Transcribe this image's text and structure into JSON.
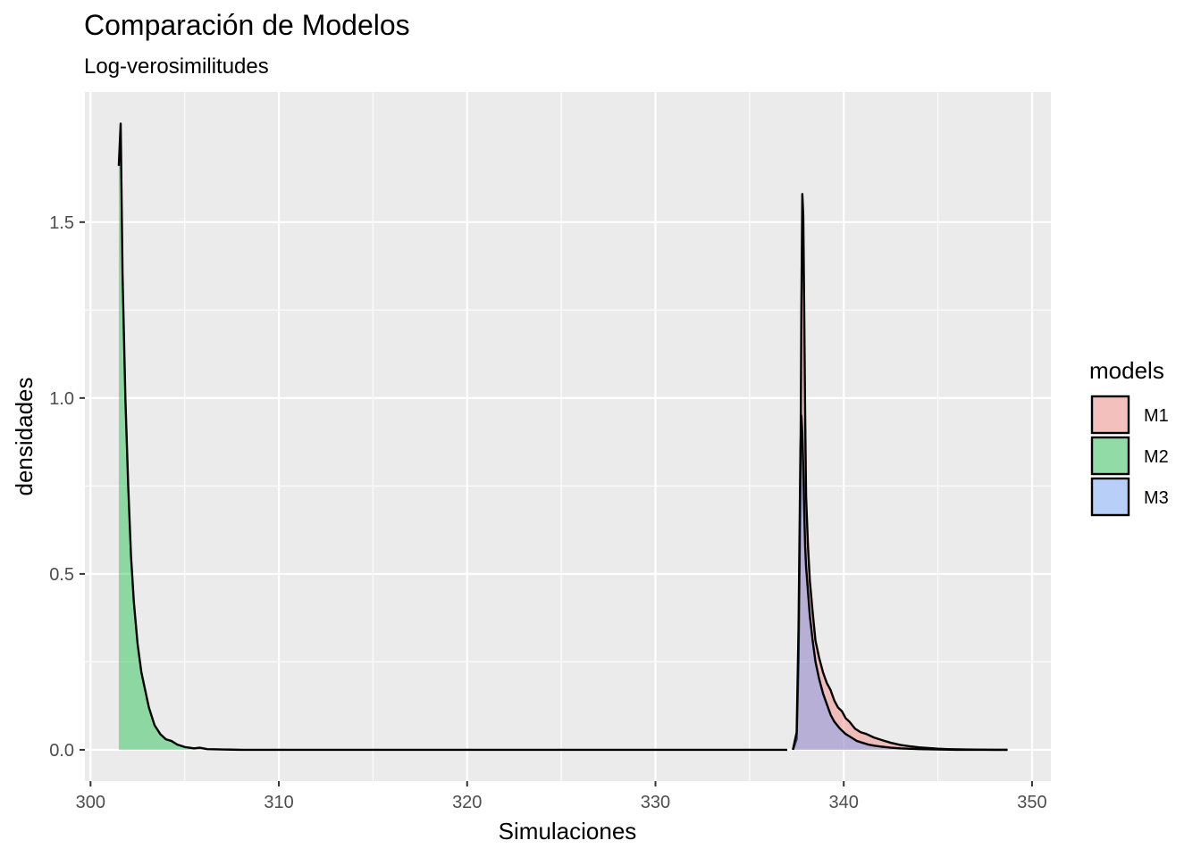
{
  "chart_data": {
    "type": "area",
    "title": "Comparación de Modelos",
    "subtitle": "Log-verosimilitudes",
    "xlabel": "Simulaciones",
    "ylabel": "densidades",
    "xlim": [
      299.7,
      351
    ],
    "ylim": [
      -0.089,
      1.87
    ],
    "x_ticks": [
      300,
      310,
      320,
      330,
      340,
      350
    ],
    "x_tick_labels": [
      "300",
      "310",
      "320",
      "330",
      "340",
      "350"
    ],
    "y_ticks": [
      0,
      0.5,
      1,
      1.5
    ],
    "y_tick_labels": [
      "0.0",
      "0.5",
      "1.0",
      "1.5"
    ],
    "grid": true,
    "legend": {
      "title": "models",
      "placement": "right",
      "entries": [
        "M1",
        "M2",
        "M3"
      ]
    },
    "series": [
      {
        "name": "M1",
        "color": "#F8766D",
        "x": [
          337.3,
          337.5,
          337.6,
          337.7,
          337.75,
          337.8,
          337.85,
          337.9,
          337.95,
          338.0,
          338.1,
          338.2,
          338.35,
          338.5,
          338.7,
          338.9,
          339.1,
          339.3,
          339.5,
          339.7,
          339.9,
          340.1,
          340.3,
          340.6,
          340.9,
          341.2,
          341.6,
          342.0,
          342.5,
          343.0,
          343.5,
          344.0,
          344.5,
          345.0,
          345.5,
          346.5,
          348.0,
          348.7
        ],
        "y": [
          0.0,
          0.03,
          0.25,
          0.75,
          1.25,
          1.58,
          1.52,
          1.25,
          0.95,
          0.72,
          0.58,
          0.48,
          0.39,
          0.31,
          0.26,
          0.22,
          0.19,
          0.17,
          0.14,
          0.12,
          0.11,
          0.09,
          0.08,
          0.06,
          0.05,
          0.045,
          0.035,
          0.028,
          0.02,
          0.014,
          0.01,
          0.007,
          0.005,
          0.003,
          0.002,
          0.001,
          0.0,
          0.0
        ]
      },
      {
        "name": "M2",
        "color": "#00BA38",
        "x": [
          301.5,
          301.6,
          301.7,
          301.85,
          302.0,
          302.15,
          302.3,
          302.5,
          302.7,
          302.9,
          303.1,
          303.4,
          303.7,
          304.0,
          304.3,
          304.6,
          305.0,
          305.5,
          305.8,
          306.2,
          307.0,
          308.0,
          310.0,
          320.0,
          330.0,
          337.0
        ],
        "y": [
          1.66,
          1.78,
          1.35,
          1.0,
          0.75,
          0.55,
          0.42,
          0.3,
          0.22,
          0.17,
          0.12,
          0.07,
          0.045,
          0.03,
          0.025,
          0.015,
          0.008,
          0.004,
          0.006,
          0.002,
          0.001,
          0.0,
          0.0,
          0.0,
          0.0,
          0.0
        ]
      },
      {
        "name": "M3",
        "color": "#619CFF",
        "x": [
          337.3,
          337.5,
          337.6,
          337.7,
          337.75,
          337.8,
          337.85,
          337.9,
          337.95,
          338.0,
          338.1,
          338.2,
          338.35,
          338.5,
          338.7,
          338.9,
          339.1,
          339.3,
          339.5,
          339.8,
          340.1,
          340.4,
          340.7,
          341.0,
          341.3,
          341.6,
          342.0,
          342.5,
          343.0,
          344.0,
          345.0,
          346.0,
          347.0,
          348.0,
          348.7
        ],
        "y": [
          0.0,
          0.05,
          0.35,
          0.85,
          0.95,
          0.9,
          0.8,
          0.68,
          0.58,
          0.52,
          0.45,
          0.38,
          0.31,
          0.25,
          0.2,
          0.16,
          0.13,
          0.1,
          0.08,
          0.06,
          0.045,
          0.035,
          0.025,
          0.02,
          0.015,
          0.012,
          0.009,
          0.006,
          0.004,
          0.002,
          0.001,
          0.0,
          0.0,
          0.0,
          0.0
        ]
      }
    ]
  }
}
